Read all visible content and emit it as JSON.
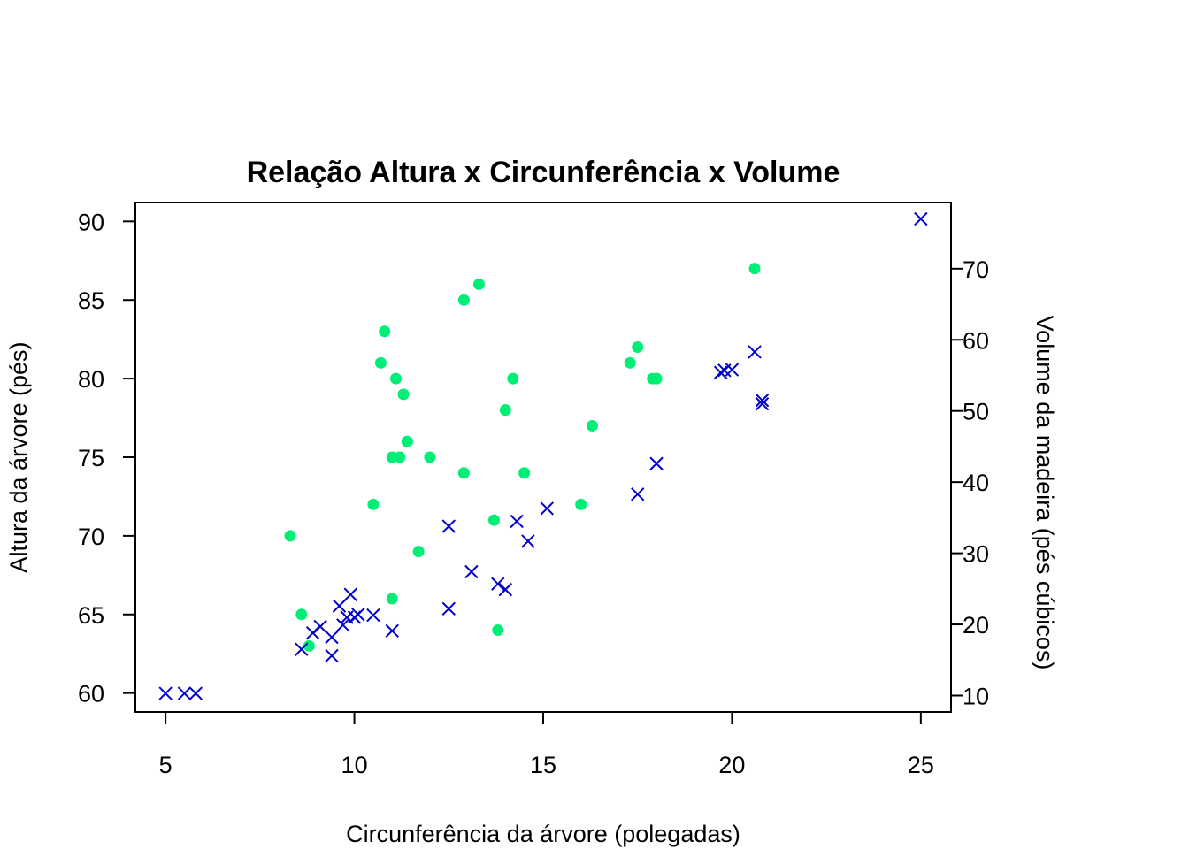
{
  "chart_data": {
    "type": "scatter",
    "title": "Relação Altura x Circunferência x Volume",
    "xlabel": "Circunferência da árvore (polegadas)",
    "ylabel": "Altura da árvore (pés)",
    "y2label": "Volume da madeira (pés cúbicos)",
    "xlim": [
      4.2,
      25.8
    ],
    "ylim": [
      58.8,
      91.2
    ],
    "y2lim": [
      7.7,
      79.3
    ],
    "xticks": [
      5,
      10,
      15,
      20,
      25
    ],
    "yticks": [
      60,
      65,
      70,
      75,
      80,
      85,
      90
    ],
    "y2ticks": [
      10,
      20,
      30,
      40,
      50,
      60,
      70
    ],
    "grid": false,
    "colors": {
      "height": "#00ee76",
      "volume": "#0000cd"
    },
    "series": [
      {
        "marker": "filled-circle",
        "axis": "left",
        "x": [
          8.3,
          8.6,
          8.8,
          10.5,
          10.7,
          10.8,
          11.0,
          11.0,
          11.1,
          11.2,
          11.3,
          11.4,
          11.4,
          11.7,
          12.0,
          12.9,
          12.9,
          13.3,
          13.7,
          13.8,
          14.0,
          14.2,
          14.5,
          16.0,
          16.3,
          17.3,
          17.5,
          17.9,
          18.0,
          18.0,
          20.6
        ],
        "y": [
          70,
          65,
          63,
          72,
          81,
          83,
          66,
          75,
          80,
          75,
          79,
          76,
          76,
          69,
          75,
          74,
          85,
          86,
          71,
          64,
          78,
          80,
          74,
          72,
          77,
          81,
          82,
          80,
          80,
          80,
          87
        ]
      },
      {
        "marker": "x",
        "axis": "right",
        "x": [
          5.0,
          5.5,
          5.8,
          8.6,
          8.9,
          9.1,
          9.4,
          9.4,
          9.6,
          9.7,
          9.8,
          9.9,
          10.0,
          10.1,
          10.5,
          11.0,
          12.5,
          12.5,
          13.1,
          13.8,
          14.0,
          14.3,
          14.6,
          15.1,
          17.5,
          18.0,
          19.7,
          19.8,
          20.0,
          20.6,
          20.8,
          20.8,
          25.0
        ],
        "y": [
          10.3,
          10.3,
          10.3,
          16.5,
          18.8,
          19.7,
          15.6,
          18.2,
          22.6,
          19.9,
          21.0,
          24.2,
          21.0,
          21.4,
          21.3,
          19.1,
          22.2,
          33.8,
          27.4,
          25.7,
          24.9,
          34.5,
          31.7,
          36.3,
          38.3,
          42.6,
          55.4,
          55.7,
          55.8,
          58.3,
          51.5,
          51.0,
          77.0
        ]
      }
    ]
  }
}
